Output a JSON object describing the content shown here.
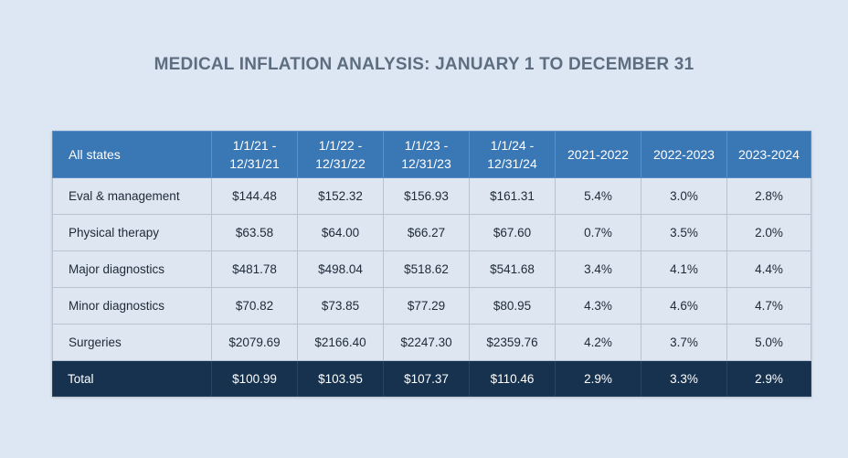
{
  "title": "MEDICAL INFLATION ANALYSIS: JANUARY 1 TO DECEMBER 31",
  "table": {
    "headers": [
      [
        "All states"
      ],
      [
        "1/1/21 -",
        "12/31/21"
      ],
      [
        "1/1/22 -",
        "12/31/22"
      ],
      [
        "1/1/23 -",
        "12/31/23"
      ],
      [
        "1/1/24 -",
        "12/31/24"
      ],
      [
        "2021-2022"
      ],
      [
        "2022-2023"
      ],
      [
        "2023-2024"
      ]
    ],
    "rows": [
      [
        "Eval & management",
        "$144.48",
        "$152.32",
        "$156.93",
        "$161.31",
        "5.4%",
        "3.0%",
        "2.8%"
      ],
      [
        "Physical therapy",
        "$63.58",
        "$64.00",
        "$66.27",
        "$67.60",
        "0.7%",
        "3.5%",
        "2.0%"
      ],
      [
        "Major diagnostics",
        "$481.78",
        "$498.04",
        "$518.62",
        "$541.68",
        "3.4%",
        "4.1%",
        "4.4%"
      ],
      [
        "Minor diagnostics",
        "$70.82",
        "$73.85",
        "$77.29",
        "$80.95",
        "4.3%",
        "4.6%",
        "4.7%"
      ],
      [
        "Surgeries",
        "$2079.69",
        "$2166.40",
        "$2247.30",
        "$2359.76",
        "4.2%",
        "3.7%",
        "5.0%"
      ]
    ],
    "total": [
      "Total",
      "$100.99",
      "$103.95",
      "$107.37",
      "$110.46",
      "2.9%",
      "3.3%",
      "2.9%"
    ]
  },
  "colors": {
    "background": "#dde7f3",
    "header": "#3a77b5",
    "row": "#dde6f1",
    "total": "#17324f",
    "title": "#5e6e80"
  }
}
